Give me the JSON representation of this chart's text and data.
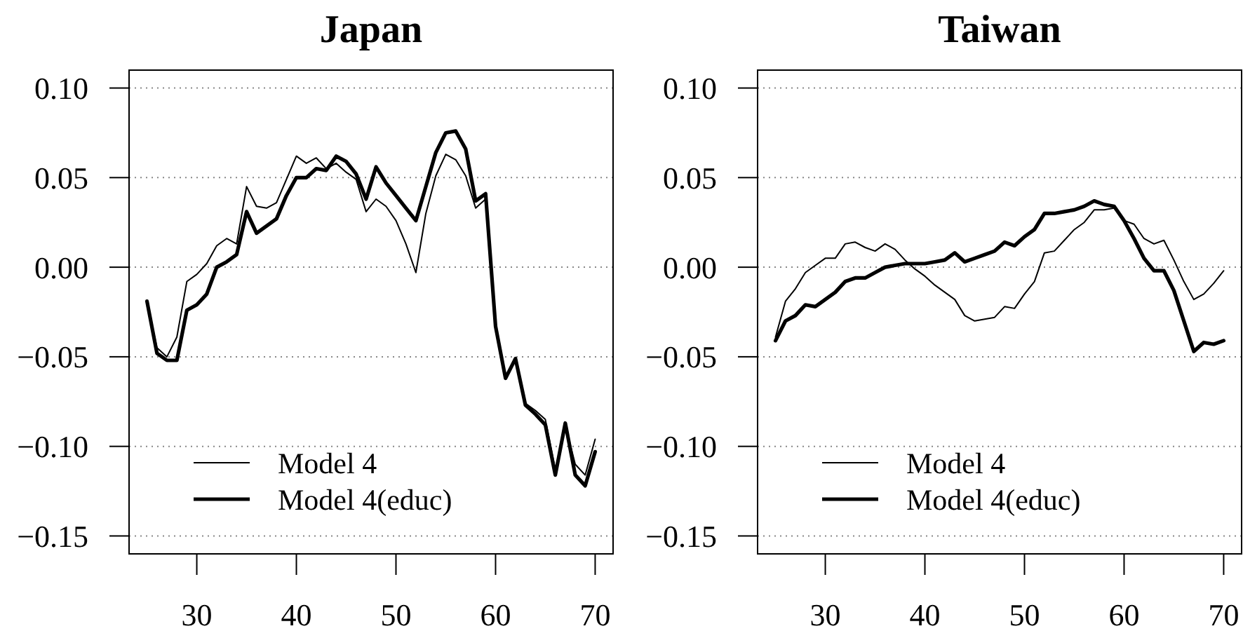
{
  "chart_data": [
    {
      "type": "line",
      "title": "Japan",
      "x": [
        25,
        26,
        27,
        28,
        29,
        30,
        31,
        32,
        33,
        34,
        35,
        36,
        37,
        38,
        39,
        40,
        41,
        42,
        43,
        44,
        45,
        46,
        47,
        48,
        49,
        50,
        51,
        52,
        53,
        54,
        55,
        56,
        57,
        58,
        59,
        60,
        61,
        62,
        63,
        64,
        65,
        66,
        67,
        68,
        69,
        70
      ],
      "series": [
        {
          "name": "Model 4",
          "color": "#000000",
          "values": [
            -0.019,
            -0.045,
            -0.05,
            -0.039,
            -0.008,
            -0.004,
            0.002,
            0.012,
            0.016,
            0.013,
            0.045,
            0.034,
            0.033,
            0.036,
            0.049,
            0.062,
            0.058,
            0.061,
            0.055,
            0.058,
            0.053,
            0.049,
            0.031,
            0.038,
            0.034,
            0.026,
            0.013,
            -0.003,
            0.03,
            0.051,
            0.063,
            0.06,
            0.051,
            0.033,
            0.038,
            -0.033,
            -0.062,
            -0.051,
            -0.076,
            -0.08,
            -0.085,
            -0.113,
            -0.088,
            -0.11,
            -0.116,
            -0.096
          ]
        },
        {
          "name": "Model 4(educ)",
          "color": "#000000",
          "values": [
            -0.019,
            -0.048,
            -0.052,
            -0.052,
            -0.024,
            -0.021,
            -0.015,
            0.0,
            0.003,
            0.007,
            0.031,
            0.019,
            0.023,
            0.027,
            0.04,
            0.05,
            0.05,
            0.055,
            0.054,
            0.062,
            0.059,
            0.052,
            0.038,
            0.056,
            0.047,
            0.04,
            0.033,
            0.026,
            0.045,
            0.064,
            0.075,
            0.076,
            0.066,
            0.037,
            0.041,
            -0.033,
            -0.062,
            -0.051,
            -0.077,
            -0.082,
            -0.088,
            -0.116,
            -0.087,
            -0.116,
            -0.122,
            -0.103
          ]
        }
      ],
      "xlim": [
        23.2,
        71.8
      ],
      "ylim": [
        -0.16,
        0.11
      ],
      "xticks": [
        30,
        40,
        50,
        60,
        70
      ],
      "yticks": [
        {
          "value": -0.15,
          "label": "−0.15"
        },
        {
          "value": -0.1,
          "label": "−0.10"
        },
        {
          "value": -0.05,
          "label": "−0.05"
        },
        {
          "value": 0,
          "label": "0.00"
        },
        {
          "value": 0.05,
          "label": "0.05"
        },
        {
          "value": 0.1,
          "label": "0.10"
        }
      ],
      "grid": "y",
      "legend": "bottom left"
    },
    {
      "type": "line",
      "title": "Taiwan",
      "x": [
        25,
        26,
        27,
        28,
        29,
        30,
        31,
        32,
        33,
        34,
        35,
        36,
        37,
        38,
        39,
        40,
        41,
        42,
        43,
        44,
        45,
        46,
        47,
        48,
        49,
        50,
        51,
        52,
        53,
        54,
        55,
        56,
        57,
        58,
        59,
        60,
        61,
        62,
        63,
        64,
        65,
        66,
        67,
        68,
        69,
        70
      ],
      "series": [
        {
          "name": "Model 4",
          "color": "#000000",
          "values": [
            -0.039,
            -0.019,
            -0.012,
            -0.003,
            0.001,
            0.005,
            0.005,
            0.013,
            0.014,
            0.011,
            0.009,
            0.013,
            0.01,
            0.004,
            -0.001,
            -0.005,
            -0.01,
            -0.014,
            -0.018,
            -0.027,
            -0.03,
            -0.029,
            -0.028,
            -0.022,
            -0.023,
            -0.015,
            -0.008,
            0.008,
            0.009,
            0.015,
            0.021,
            0.025,
            0.032,
            0.032,
            0.033,
            0.026,
            0.024,
            0.016,
            0.013,
            0.015,
            0.004,
            -0.008,
            -0.018,
            -0.015,
            -0.009,
            -0.002
          ]
        },
        {
          "name": "Model 4(educ)",
          "color": "#000000",
          "values": [
            -0.041,
            -0.03,
            -0.027,
            -0.021,
            -0.022,
            -0.018,
            -0.014,
            -0.008,
            -0.006,
            -0.006,
            -0.003,
            0.0,
            0.001,
            0.002,
            0.002,
            0.002,
            0.003,
            0.004,
            0.008,
            0.003,
            0.005,
            0.007,
            0.009,
            0.014,
            0.012,
            0.017,
            0.021,
            0.03,
            0.03,
            0.031,
            0.032,
            0.034,
            0.037,
            0.035,
            0.034,
            0.026,
            0.016,
            0.005,
            -0.002,
            -0.002,
            -0.013,
            -0.03,
            -0.047,
            -0.042,
            -0.043,
            -0.041
          ]
        }
      ],
      "xlim": [
        23.2,
        71.8
      ],
      "ylim": [
        -0.16,
        0.11
      ],
      "xticks": [
        30,
        40,
        50,
        60,
        70
      ],
      "yticks": [
        {
          "value": -0.15,
          "label": "−0.15"
        },
        {
          "value": -0.1,
          "label": "−0.10"
        },
        {
          "value": -0.05,
          "label": "−0.05"
        },
        {
          "value": 0,
          "label": "0.00"
        },
        {
          "value": 0.05,
          "label": "0.05"
        },
        {
          "value": 0.1,
          "label": "0.10"
        }
      ],
      "grid": "y",
      "legend": "bottom left"
    }
  ]
}
